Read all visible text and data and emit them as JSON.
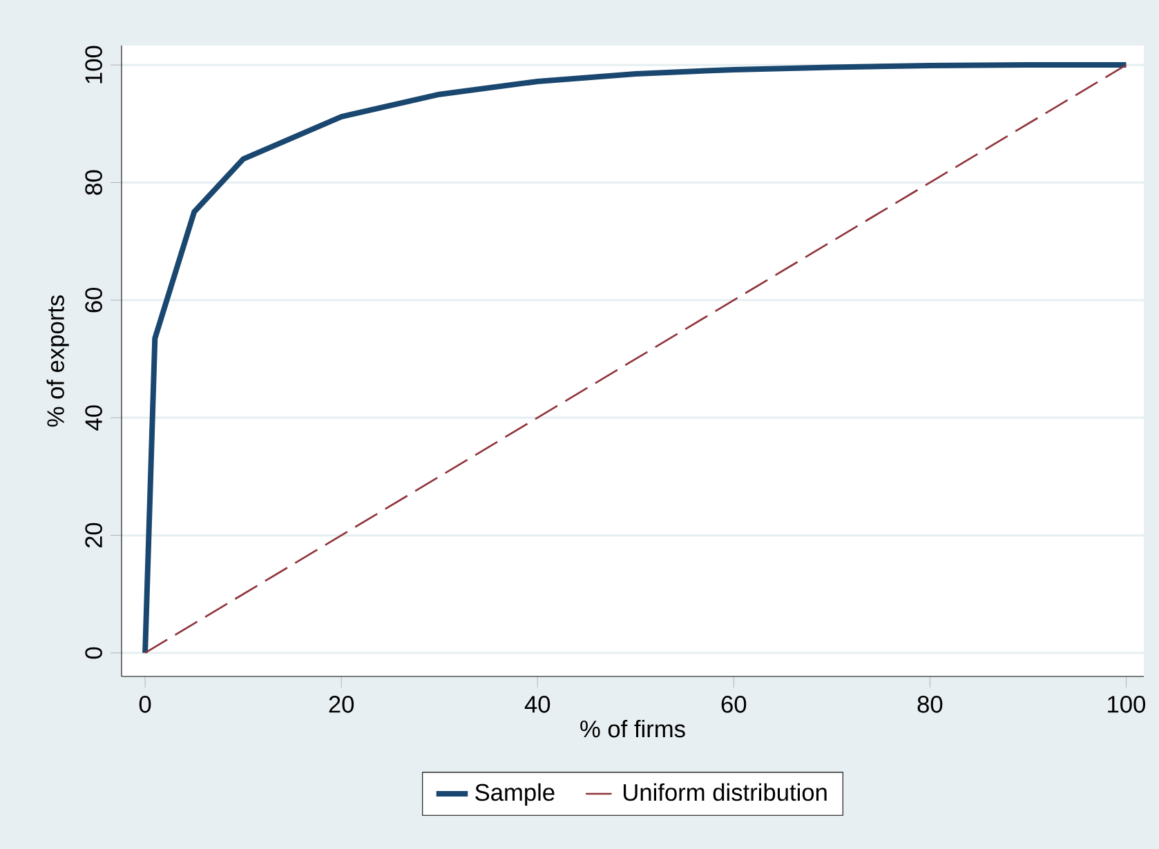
{
  "chart_data": {
    "type": "line",
    "xlabel": "% of firms",
    "ylabel": "% of exports",
    "xlim": [
      -2.4,
      101.8
    ],
    "ylim": [
      -4,
      103.3
    ],
    "xticks": [
      0,
      20,
      40,
      60,
      80,
      100
    ],
    "yticks": [
      0,
      20,
      40,
      60,
      80,
      100
    ],
    "grid": "y",
    "legend": "bottom",
    "series": [
      {
        "name": "Sample",
        "color": "#1a476f",
        "line_style": "solid",
        "x": [
          0,
          1,
          5,
          10,
          20,
          30,
          40,
          50,
          60,
          70,
          80,
          90,
          100
        ],
        "values": [
          0,
          53.5,
          75,
          84,
          91.2,
          95,
          97.2,
          98.5,
          99.2,
          99.6,
          99.9,
          100,
          100
        ]
      },
      {
        "name": "Uniform distribution",
        "color": "#90353b",
        "line_style": "dashed",
        "x": [
          0,
          100
        ],
        "values": [
          0,
          100
        ]
      }
    ]
  }
}
